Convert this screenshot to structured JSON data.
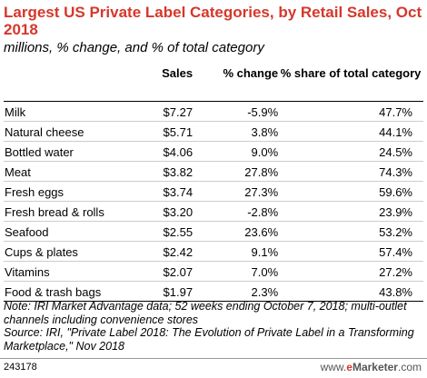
{
  "chart_data": {
    "type": "table",
    "title": "Largest US Private Label Categories, by Retail Sales, Oct 2018",
    "subtitle": "millions, % change, and % of total category",
    "columns": [
      "",
      "Sales",
      "% change",
      "% share of total category"
    ],
    "rows": [
      {
        "category": "Milk",
        "sales": "$7.27",
        "change": "-5.9%",
        "share": "47.7%"
      },
      {
        "category": "Natural cheese",
        "sales": "$5.71",
        "change": "3.8%",
        "share": "44.1%"
      },
      {
        "category": "Bottled water",
        "sales": "$4.06",
        "change": "9.0%",
        "share": "24.5%"
      },
      {
        "category": "Meat",
        "sales": "$3.82",
        "change": "27.8%",
        "share": "74.3%"
      },
      {
        "category": "Fresh eggs",
        "sales": "$3.74",
        "change": "27.3%",
        "share": "59.6%"
      },
      {
        "category": "Fresh bread & rolls",
        "sales": "$3.20",
        "change": "-2.8%",
        "share": "23.9%"
      },
      {
        "category": "Seafood",
        "sales": "$2.55",
        "change": "23.6%",
        "share": "53.2%"
      },
      {
        "category": "Cups & plates",
        "sales": "$2.42",
        "change": "9.1%",
        "share": "57.4%"
      },
      {
        "category": "Vitamins",
        "sales": "$2.07",
        "change": "7.0%",
        "share": "27.2%"
      },
      {
        "category": "Food & trash bags",
        "sales": "$1.97",
        "change": "2.3%",
        "share": "43.8%"
      }
    ],
    "note": "Note: IRI Market Advantage data; 52 weeks ending October 7, 2018; multi-outlet channels including convenience stores",
    "source": "Source: IRI, \"Private Label 2018: The Evolution of Private Label in a Transforming Marketplace,\" Nov 2018"
  },
  "footer": {
    "chart_id": "243178",
    "brand_prefix": "www.",
    "brand_e": "e",
    "brand_name": "Marketer",
    "brand_suffix": ".com"
  },
  "colors": {
    "title": "#d6372b",
    "brand_accent": "#d6372b"
  }
}
